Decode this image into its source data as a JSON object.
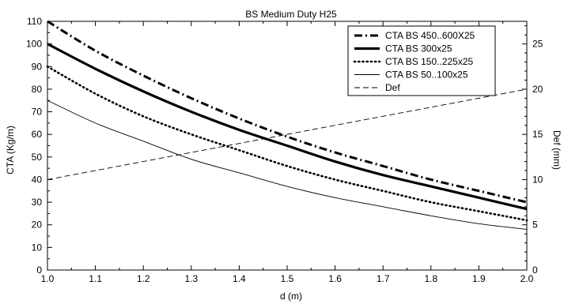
{
  "chart_data": {
    "type": "line",
    "title": "BS Medium Duty H25",
    "xlabel": "d (m)",
    "ylabel": "CTA (Kg/m)",
    "y2label": "Def  (mm)",
    "xlim": [
      1.0,
      2.0
    ],
    "ylim": [
      0,
      110
    ],
    "y2lim": [
      0,
      27.5
    ],
    "x_ticks": [
      "1.0",
      "1.1",
      "1.2",
      "1.3",
      "1.4",
      "1.5",
      "1.6",
      "1.7",
      "1.8",
      "1.9",
      "2.0"
    ],
    "y_ticks": [
      "0",
      "10",
      "20",
      "30",
      "40",
      "50",
      "60",
      "70",
      "80",
      "90",
      "100",
      "110"
    ],
    "y2_ticks": [
      "0",
      "5",
      "10",
      "15",
      "20",
      "25"
    ],
    "grid": false,
    "legend_position": "top-right",
    "x": [
      1.0,
      1.1,
      1.2,
      1.3,
      1.4,
      1.5,
      1.6,
      1.7,
      1.8,
      1.9,
      2.0
    ],
    "series": [
      {
        "name": "CTA BS 450..600X25",
        "axis": "left",
        "style": "dashdot-thick",
        "values": [
          110,
          97,
          86,
          76,
          67,
          59,
          52,
          46,
          40,
          35,
          30
        ]
      },
      {
        "name": "CTA BS 300x25",
        "axis": "left",
        "style": "solid-thick",
        "values": [
          100,
          89,
          79,
          70,
          62,
          55,
          48,
          42,
          37,
          32,
          27
        ]
      },
      {
        "name": "CTA BS 150..225x25",
        "axis": "left",
        "style": "dotted-thick",
        "values": [
          90,
          78,
          68,
          60,
          53,
          46,
          40,
          35,
          30,
          26,
          22
        ]
      },
      {
        "name": "CTA BS 50..100x25",
        "axis": "left",
        "style": "solid-thin",
        "values": [
          75,
          65,
          57,
          49,
          43,
          37,
          32,
          28,
          24,
          20.5,
          18
        ]
      },
      {
        "name": "Def",
        "axis": "right",
        "style": "dashed",
        "values": [
          10,
          11,
          12,
          13,
          14,
          15,
          16,
          17,
          18,
          19,
          20
        ]
      }
    ]
  }
}
